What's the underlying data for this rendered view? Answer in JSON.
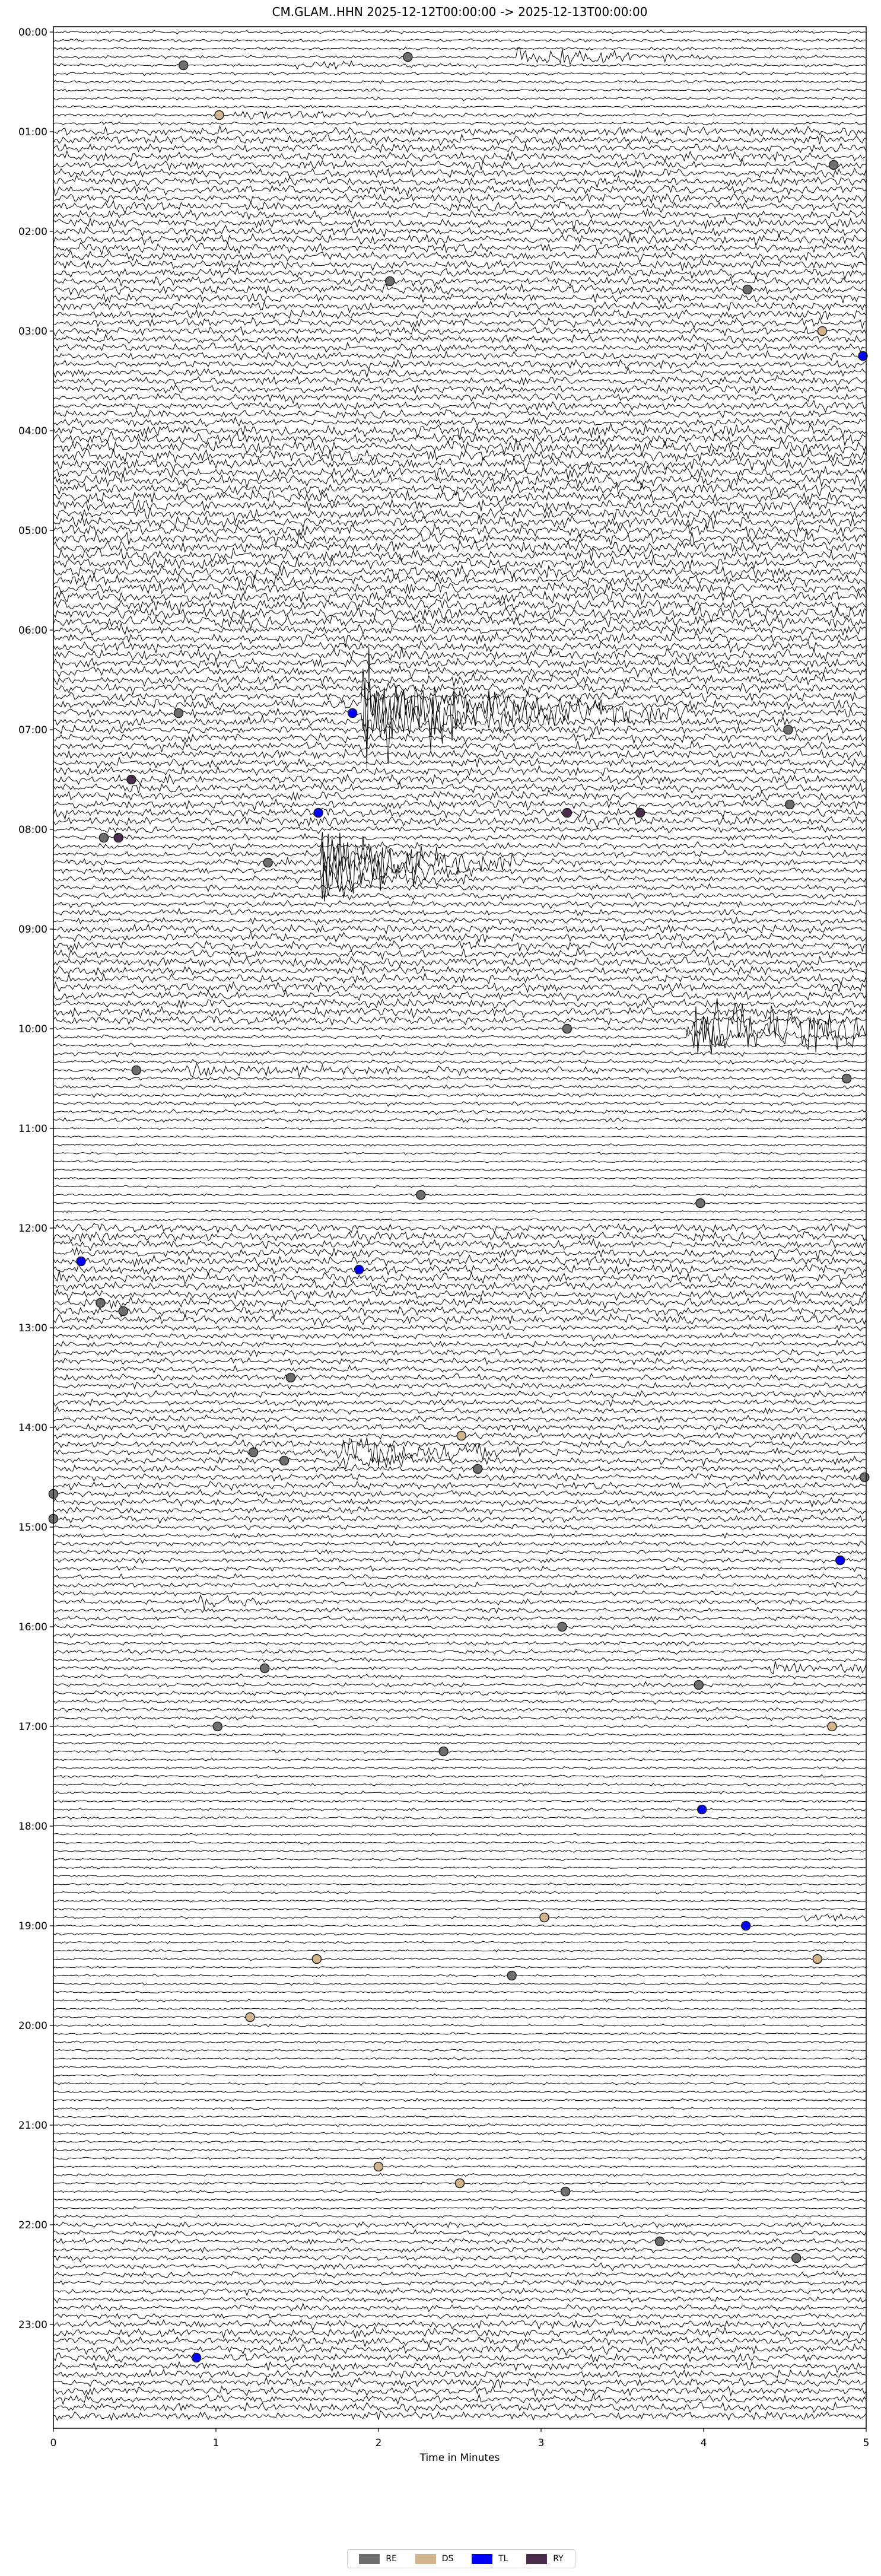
{
  "chart_data": {
    "type": "line",
    "title": "CM.GLAM..HHN  2025-12-12T00:00:00 -> 2025-12-13T00:00:00",
    "xlabel": "Time in Minutes",
    "ylabel": "",
    "xlim": [
      0,
      5
    ],
    "x_ticks": [
      "0",
      "1",
      "2",
      "3",
      "4",
      "5"
    ],
    "row_interval_minutes": 5,
    "y_ticks": [
      "00:00",
      "01:00",
      "02:00",
      "03:00",
      "04:00",
      "05:00",
      "06:00",
      "07:00",
      "08:00",
      "09:00",
      "10:00",
      "11:00",
      "12:00",
      "13:00",
      "14:00",
      "15:00",
      "16:00",
      "17:00",
      "18:00",
      "19:00",
      "20:00",
      "21:00",
      "22:00",
      "23:00"
    ],
    "grid": false,
    "legend_placement": "bottom-center",
    "legend": [
      {
        "label": "RE",
        "color": "#6e6e6e"
      },
      {
        "label": "DS",
        "color": "#d2b48c"
      },
      {
        "label": "TL",
        "color": "#0000ff"
      },
      {
        "label": "RY",
        "color": "#4b2c4f"
      }
    ],
    "events": [
      {
        "row": "00:15",
        "minute": 2.18,
        "type": "RE"
      },
      {
        "row": "00:20",
        "minute": 0.8,
        "type": "RE"
      },
      {
        "row": "00:50",
        "minute": 1.02,
        "type": "DS"
      },
      {
        "row": "01:20",
        "minute": 4.8,
        "type": "RE"
      },
      {
        "row": "02:30",
        "minute": 2.07,
        "type": "RE"
      },
      {
        "row": "02:35",
        "minute": 4.27,
        "type": "RE"
      },
      {
        "row": "03:00",
        "minute": 4.73,
        "type": "DS"
      },
      {
        "row": "03:15",
        "minute": 4.98,
        "type": "TL"
      },
      {
        "row": "06:50",
        "minute": 0.77,
        "type": "RE"
      },
      {
        "row": "06:50",
        "minute": 1.84,
        "type": "TL"
      },
      {
        "row": "07:00",
        "minute": 4.52,
        "type": "RE"
      },
      {
        "row": "07:30",
        "minute": 0.48,
        "type": "RY"
      },
      {
        "row": "07:45",
        "minute": 4.53,
        "type": "RE"
      },
      {
        "row": "07:50",
        "minute": 1.63,
        "type": "TL"
      },
      {
        "row": "07:50",
        "minute": 3.16,
        "type": "RY"
      },
      {
        "row": "07:50",
        "minute": 3.61,
        "type": "RY"
      },
      {
        "row": "08:05",
        "minute": 0.31,
        "type": "RE"
      },
      {
        "row": "08:05",
        "minute": 0.4,
        "type": "RY"
      },
      {
        "row": "08:20",
        "minute": 1.32,
        "type": "RE"
      },
      {
        "row": "10:00",
        "minute": 3.16,
        "type": "RE"
      },
      {
        "row": "10:25",
        "minute": 0.51,
        "type": "RE"
      },
      {
        "row": "10:30",
        "minute": 4.88,
        "type": "RE"
      },
      {
        "row": "11:40",
        "minute": 2.26,
        "type": "RE"
      },
      {
        "row": "11:45",
        "minute": 3.98,
        "type": "RE"
      },
      {
        "row": "12:20",
        "minute": 0.17,
        "type": "TL"
      },
      {
        "row": "12:25",
        "minute": 1.88,
        "type": "TL"
      },
      {
        "row": "12:45",
        "minute": 0.29,
        "type": "RE"
      },
      {
        "row": "12:50",
        "minute": 0.43,
        "type": "RE"
      },
      {
        "row": "13:30",
        "minute": 1.46,
        "type": "RE"
      },
      {
        "row": "14:05",
        "minute": 2.51,
        "type": "DS"
      },
      {
        "row": "14:15",
        "minute": 1.23,
        "type": "RE"
      },
      {
        "row": "14:20",
        "minute": 1.42,
        "type": "RE"
      },
      {
        "row": "14:25",
        "minute": 2.61,
        "type": "RE"
      },
      {
        "row": "14:30",
        "minute": 4.99,
        "type": "RE"
      },
      {
        "row": "14:40",
        "minute": 0.0,
        "type": "RE"
      },
      {
        "row": "14:55",
        "minute": 0.0,
        "type": "RE"
      },
      {
        "row": "15:20",
        "minute": 4.84,
        "type": "TL"
      },
      {
        "row": "16:00",
        "minute": 3.13,
        "type": "RE"
      },
      {
        "row": "16:25",
        "minute": 1.3,
        "type": "RE"
      },
      {
        "row": "16:35",
        "minute": 3.97,
        "type": "RE"
      },
      {
        "row": "17:00",
        "minute": 1.01,
        "type": "RE"
      },
      {
        "row": "17:00",
        "minute": 4.79,
        "type": "DS"
      },
      {
        "row": "17:15",
        "minute": 2.4,
        "type": "RE"
      },
      {
        "row": "17:50",
        "minute": 3.99,
        "type": "TL"
      },
      {
        "row": "18:55",
        "minute": 3.02,
        "type": "DS"
      },
      {
        "row": "19:00",
        "minute": 4.26,
        "type": "TL"
      },
      {
        "row": "19:20",
        "minute": 1.62,
        "type": "DS"
      },
      {
        "row": "19:20",
        "minute": 4.7,
        "type": "DS"
      },
      {
        "row": "19:30",
        "minute": 2.82,
        "type": "RE"
      },
      {
        "row": "19:55",
        "minute": 1.21,
        "type": "DS"
      },
      {
        "row": "21:25",
        "minute": 2.0,
        "type": "DS"
      },
      {
        "row": "21:35",
        "minute": 2.5,
        "type": "DS"
      },
      {
        "row": "21:40",
        "minute": 3.15,
        "type": "RE"
      },
      {
        "row": "22:10",
        "minute": 3.73,
        "type": "RE"
      },
      {
        "row": "22:20",
        "minute": 4.57,
        "type": "RE"
      },
      {
        "row": "23:20",
        "minute": 0.88,
        "type": "TL"
      }
    ]
  }
}
